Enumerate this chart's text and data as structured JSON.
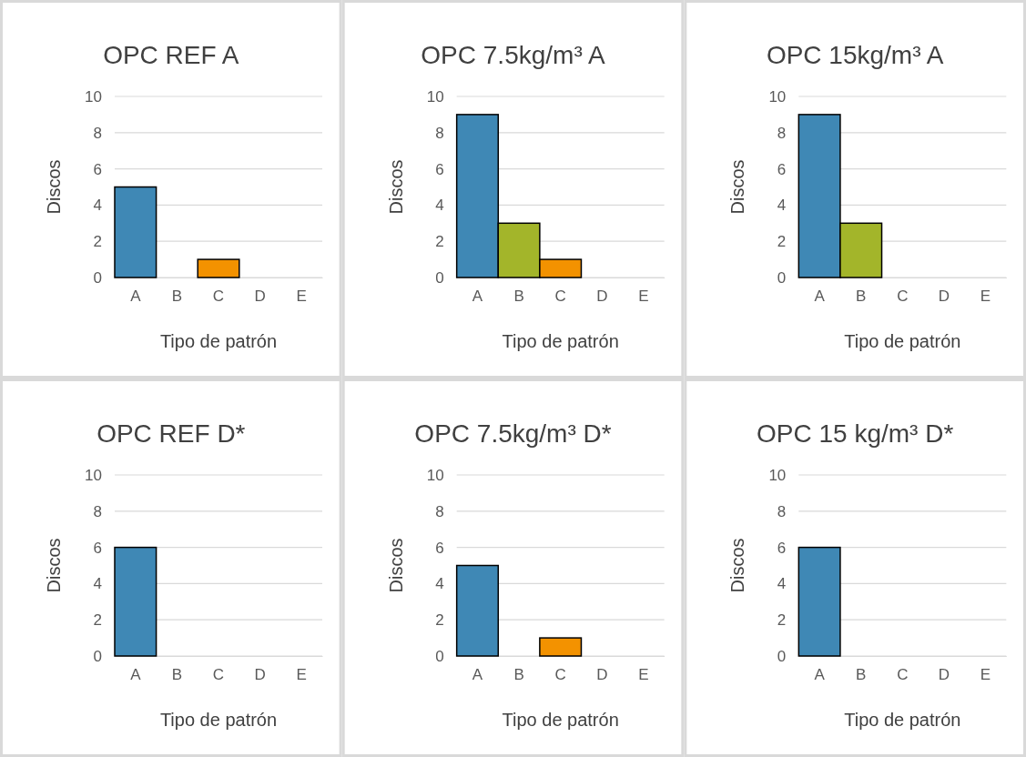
{
  "chart_data": [
    {
      "type": "bar",
      "title": "OPC REF A",
      "xlabel": "Tipo de patrón",
      "ylabel": "Discos",
      "categories": [
        "A",
        "B",
        "C",
        "D",
        "E"
      ],
      "values": [
        5,
        0,
        1,
        0,
        0
      ],
      "colors": [
        "#3f88b5",
        "#a3b52a",
        "#f39200",
        "#7f7f7f",
        "#7f7f7f"
      ],
      "ylim": [
        0,
        10
      ],
      "yticks": [
        0,
        2,
        4,
        6,
        8,
        10
      ],
      "grid": "y"
    },
    {
      "type": "bar",
      "title": "OPC 7.5kg/m³ A",
      "xlabel": "Tipo de patrón",
      "ylabel": "Discos",
      "categories": [
        "A",
        "B",
        "C",
        "D",
        "E"
      ],
      "values": [
        9,
        3,
        1,
        0,
        0
      ],
      "colors": [
        "#3f88b5",
        "#a3b52a",
        "#f39200",
        "#7f7f7f",
        "#7f7f7f"
      ],
      "ylim": [
        0,
        10
      ],
      "yticks": [
        0,
        2,
        4,
        6,
        8,
        10
      ],
      "grid": "y"
    },
    {
      "type": "bar",
      "title": "OPC 15kg/m³ A",
      "xlabel": "Tipo de patrón",
      "ylabel": "Discos",
      "categories": [
        "A",
        "B",
        "C",
        "D",
        "E"
      ],
      "values": [
        9,
        3,
        0,
        0,
        0
      ],
      "colors": [
        "#3f88b5",
        "#a3b52a",
        "#f39200",
        "#7f7f7f",
        "#7f7f7f"
      ],
      "ylim": [
        0,
        10
      ],
      "yticks": [
        0,
        2,
        4,
        6,
        8,
        10
      ],
      "grid": "y"
    },
    {
      "type": "bar",
      "title": "OPC REF D*",
      "xlabel": "Tipo de patrón",
      "ylabel": "Discos",
      "categories": [
        "A",
        "B",
        "C",
        "D",
        "E"
      ],
      "values": [
        6,
        0,
        0,
        0,
        0
      ],
      "colors": [
        "#3f88b5",
        "#a3b52a",
        "#f39200",
        "#7f7f7f",
        "#7f7f7f"
      ],
      "ylim": [
        0,
        10
      ],
      "yticks": [
        0,
        2,
        4,
        6,
        8,
        10
      ],
      "grid": "y"
    },
    {
      "type": "bar",
      "title": "OPC 7.5kg/m³ D*",
      "xlabel": "Tipo de patrón",
      "ylabel": "Discos",
      "categories": [
        "A",
        "B",
        "C",
        "D",
        "E"
      ],
      "values": [
        5,
        0,
        1,
        0,
        0
      ],
      "colors": [
        "#3f88b5",
        "#a3b52a",
        "#f39200",
        "#7f7f7f",
        "#7f7f7f"
      ],
      "ylim": [
        0,
        10
      ],
      "yticks": [
        0,
        2,
        4,
        6,
        8,
        10
      ],
      "grid": "y"
    },
    {
      "type": "bar",
      "title": "OPC 15 kg/m³ D*",
      "xlabel": "Tipo de patrón",
      "ylabel": "Discos",
      "categories": [
        "A",
        "B",
        "C",
        "D",
        "E"
      ],
      "values": [
        6,
        0,
        0,
        0,
        0
      ],
      "colors": [
        "#3f88b5",
        "#a3b52a",
        "#f39200",
        "#7f7f7f",
        "#7f7f7f"
      ],
      "ylim": [
        0,
        10
      ],
      "yticks": [
        0,
        2,
        4,
        6,
        8,
        10
      ],
      "grid": "y"
    }
  ]
}
